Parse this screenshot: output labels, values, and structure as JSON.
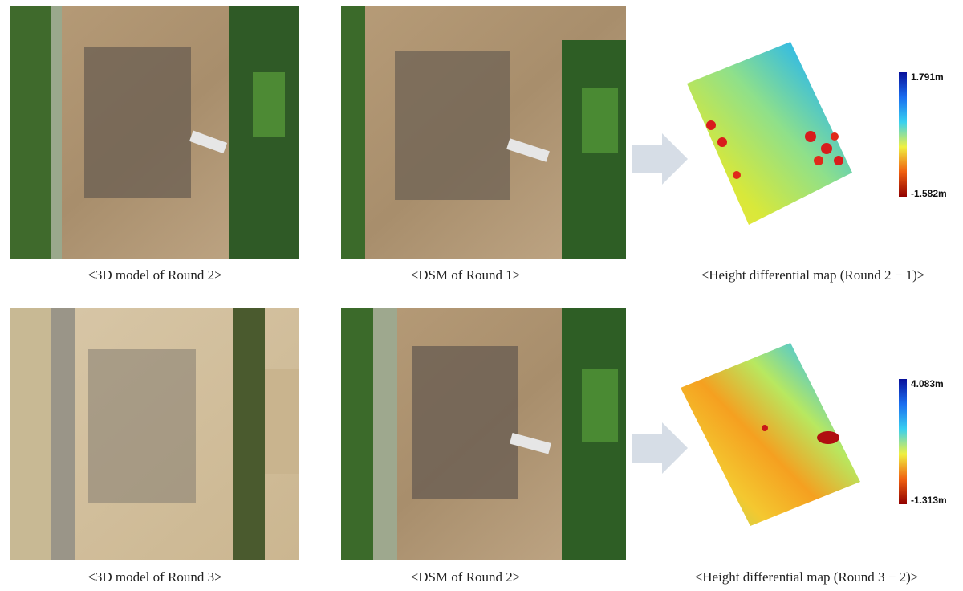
{
  "rows": [
    {
      "panels": [
        {
          "caption": "<3D model of Round 2>"
        },
        {
          "caption": "<DSM of Round 1>"
        },
        {
          "caption": "<Height differential map (Round 2 − 1)>",
          "colorbar": {
            "max": "1.791m",
            "min": "-1.582m"
          }
        }
      ]
    },
    {
      "panels": [
        {
          "caption": "<3D model of Round 3>"
        },
        {
          "caption": "<DSM of Round 2>"
        },
        {
          "caption": "<Height differential map (Round 3 − 2)>",
          "colorbar": {
            "max": "4.083m",
            "min": "-1.313m"
          }
        }
      ]
    }
  ]
}
